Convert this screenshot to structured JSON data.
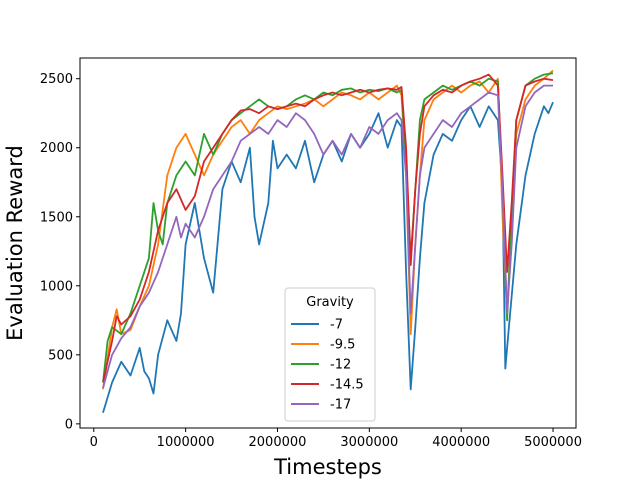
{
  "chart_data": {
    "type": "line",
    "xlabel": "Timesteps",
    "ylabel": "Evaluation Reward",
    "xlim": [
      -150000,
      5250000
    ],
    "ylim": [
      -30,
      2650
    ],
    "xticks": [
      0,
      1000000,
      2000000,
      3000000,
      4000000,
      5000000
    ],
    "xtick_labels": [
      "0",
      "1000000",
      "2000000",
      "3000000",
      "4000000",
      "5000000"
    ],
    "yticks": [
      0,
      500,
      1000,
      1500,
      2000,
      2500
    ],
    "ytick_labels": [
      "0",
      "500",
      "1000",
      "1500",
      "2000",
      "2500"
    ],
    "grid": false,
    "legend": {
      "title": "Gravity",
      "position": "lower-center"
    },
    "series": [
      {
        "name": "-7",
        "color": "#1f77b4",
        "points": [
          [
            100000,
            80
          ],
          [
            200000,
            300
          ],
          [
            300000,
            450
          ],
          [
            400000,
            350
          ],
          [
            500000,
            550
          ],
          [
            550000,
            380
          ],
          [
            600000,
            330
          ],
          [
            650000,
            220
          ],
          [
            700000,
            500
          ],
          [
            800000,
            750
          ],
          [
            900000,
            600
          ],
          [
            950000,
            800
          ],
          [
            1000000,
            1300
          ],
          [
            1100000,
            1600
          ],
          [
            1200000,
            1200
          ],
          [
            1300000,
            950
          ],
          [
            1400000,
            1700
          ],
          [
            1500000,
            1900
          ],
          [
            1600000,
            1750
          ],
          [
            1700000,
            2000
          ],
          [
            1750000,
            1500
          ],
          [
            1800000,
            1300
          ],
          [
            1900000,
            1600
          ],
          [
            1950000,
            2050
          ],
          [
            2000000,
            1850
          ],
          [
            2100000,
            1950
          ],
          [
            2200000,
            1850
          ],
          [
            2300000,
            2050
          ],
          [
            2400000,
            1750
          ],
          [
            2500000,
            1950
          ],
          [
            2600000,
            2050
          ],
          [
            2700000,
            1900
          ],
          [
            2800000,
            2100
          ],
          [
            2900000,
            2000
          ],
          [
            3000000,
            2100
          ],
          [
            3100000,
            2250
          ],
          [
            3200000,
            2000
          ],
          [
            3300000,
            2200
          ],
          [
            3350000,
            2150
          ],
          [
            3400000,
            1100
          ],
          [
            3450000,
            250
          ],
          [
            3500000,
            700
          ],
          [
            3550000,
            1200
          ],
          [
            3600000,
            1600
          ],
          [
            3700000,
            1950
          ],
          [
            3800000,
            2100
          ],
          [
            3900000,
            2050
          ],
          [
            4000000,
            2200
          ],
          [
            4100000,
            2300
          ],
          [
            4200000,
            2150
          ],
          [
            4300000,
            2300
          ],
          [
            4400000,
            2200
          ],
          [
            4450000,
            1700
          ],
          [
            4480000,
            400
          ],
          [
            4520000,
            700
          ],
          [
            4600000,
            1300
          ],
          [
            4700000,
            1800
          ],
          [
            4800000,
            2100
          ],
          [
            4900000,
            2300
          ],
          [
            4950000,
            2250
          ],
          [
            5000000,
            2330
          ]
        ]
      },
      {
        "name": "-9.5",
        "color": "#ff7f0e",
        "points": [
          [
            100000,
            250
          ],
          [
            200000,
            700
          ],
          [
            250000,
            830
          ],
          [
            300000,
            650
          ],
          [
            400000,
            680
          ],
          [
            500000,
            850
          ],
          [
            600000,
            1000
          ],
          [
            700000,
            1300
          ],
          [
            800000,
            1800
          ],
          [
            900000,
            2000
          ],
          [
            1000000,
            2100
          ],
          [
            1100000,
            1950
          ],
          [
            1200000,
            1800
          ],
          [
            1300000,
            1950
          ],
          [
            1400000,
            2050
          ],
          [
            1500000,
            2150
          ],
          [
            1600000,
            2200
          ],
          [
            1700000,
            2100
          ],
          [
            1800000,
            2200
          ],
          [
            1900000,
            2250
          ],
          [
            2000000,
            2300
          ],
          [
            2100000,
            2280
          ],
          [
            2200000,
            2300
          ],
          [
            2300000,
            2320
          ],
          [
            2400000,
            2350
          ],
          [
            2500000,
            2300
          ],
          [
            2600000,
            2350
          ],
          [
            2700000,
            2400
          ],
          [
            2800000,
            2380
          ],
          [
            2900000,
            2350
          ],
          [
            3000000,
            2400
          ],
          [
            3100000,
            2350
          ],
          [
            3200000,
            2400
          ],
          [
            3300000,
            2450
          ],
          [
            3350000,
            2380
          ],
          [
            3400000,
            1800
          ],
          [
            3450000,
            650
          ],
          [
            3500000,
            1300
          ],
          [
            3550000,
            1800
          ],
          [
            3600000,
            2200
          ],
          [
            3700000,
            2350
          ],
          [
            3800000,
            2400
          ],
          [
            3900000,
            2450
          ],
          [
            4000000,
            2400
          ],
          [
            4100000,
            2450
          ],
          [
            4200000,
            2480
          ],
          [
            4300000,
            2400
          ],
          [
            4350000,
            2450
          ],
          [
            4400000,
            2500
          ],
          [
            4450000,
            1500
          ],
          [
            4500000,
            800
          ],
          [
            4550000,
            1500
          ],
          [
            4600000,
            2100
          ],
          [
            4700000,
            2350
          ],
          [
            4800000,
            2450
          ],
          [
            4900000,
            2500
          ],
          [
            5000000,
            2560
          ]
        ]
      },
      {
        "name": "-12",
        "color": "#2ca02c",
        "points": [
          [
            100000,
            300
          ],
          [
            150000,
            600
          ],
          [
            200000,
            700
          ],
          [
            300000,
            650
          ],
          [
            400000,
            800
          ],
          [
            500000,
            1000
          ],
          [
            600000,
            1200
          ],
          [
            650000,
            1600
          ],
          [
            700000,
            1400
          ],
          [
            750000,
            1300
          ],
          [
            800000,
            1600
          ],
          [
            900000,
            1800
          ],
          [
            1000000,
            1900
          ],
          [
            1100000,
            1800
          ],
          [
            1200000,
            2100
          ],
          [
            1300000,
            1950
          ],
          [
            1400000,
            2100
          ],
          [
            1500000,
            2200
          ],
          [
            1600000,
            2250
          ],
          [
            1700000,
            2300
          ],
          [
            1800000,
            2350
          ],
          [
            1900000,
            2300
          ],
          [
            2000000,
            2280
          ],
          [
            2100000,
            2300
          ],
          [
            2200000,
            2350
          ],
          [
            2300000,
            2380
          ],
          [
            2400000,
            2350
          ],
          [
            2500000,
            2400
          ],
          [
            2600000,
            2380
          ],
          [
            2700000,
            2420
          ],
          [
            2800000,
            2430
          ],
          [
            2900000,
            2400
          ],
          [
            3000000,
            2420
          ],
          [
            3100000,
            2410
          ],
          [
            3200000,
            2430
          ],
          [
            3300000,
            2400
          ],
          [
            3350000,
            2420
          ],
          [
            3400000,
            1900
          ],
          [
            3450000,
            1200
          ],
          [
            3500000,
            1700
          ],
          [
            3550000,
            2200
          ],
          [
            3600000,
            2350
          ],
          [
            3700000,
            2400
          ],
          [
            3800000,
            2450
          ],
          [
            3900000,
            2420
          ],
          [
            4000000,
            2450
          ],
          [
            4100000,
            2480
          ],
          [
            4200000,
            2450
          ],
          [
            4300000,
            2500
          ],
          [
            4400000,
            2480
          ],
          [
            4450000,
            1700
          ],
          [
            4500000,
            750
          ],
          [
            4550000,
            1500
          ],
          [
            4600000,
            2200
          ],
          [
            4700000,
            2450
          ],
          [
            4800000,
            2500
          ],
          [
            4900000,
            2530
          ],
          [
            5000000,
            2540
          ]
        ]
      },
      {
        "name": "-14.5",
        "color": "#d62728",
        "points": [
          [
            100000,
            300
          ],
          [
            200000,
            600
          ],
          [
            250000,
            780
          ],
          [
            300000,
            720
          ],
          [
            400000,
            780
          ],
          [
            500000,
            900
          ],
          [
            600000,
            1100
          ],
          [
            700000,
            1400
          ],
          [
            800000,
            1600
          ],
          [
            900000,
            1700
          ],
          [
            1000000,
            1550
          ],
          [
            1100000,
            1650
          ],
          [
            1200000,
            1900
          ],
          [
            1300000,
            2000
          ],
          [
            1400000,
            2100
          ],
          [
            1500000,
            2200
          ],
          [
            1600000,
            2270
          ],
          [
            1700000,
            2280
          ],
          [
            1800000,
            2250
          ],
          [
            1900000,
            2300
          ],
          [
            2000000,
            2280
          ],
          [
            2100000,
            2300
          ],
          [
            2200000,
            2320
          ],
          [
            2300000,
            2300
          ],
          [
            2400000,
            2350
          ],
          [
            2500000,
            2380
          ],
          [
            2600000,
            2400
          ],
          [
            2700000,
            2380
          ],
          [
            2800000,
            2400
          ],
          [
            2900000,
            2420
          ],
          [
            3000000,
            2400
          ],
          [
            3100000,
            2420
          ],
          [
            3200000,
            2430
          ],
          [
            3300000,
            2420
          ],
          [
            3350000,
            2440
          ],
          [
            3400000,
            2000
          ],
          [
            3450000,
            1150
          ],
          [
            3500000,
            1700
          ],
          [
            3550000,
            2100
          ],
          [
            3600000,
            2300
          ],
          [
            3700000,
            2380
          ],
          [
            3800000,
            2420
          ],
          [
            3900000,
            2400
          ],
          [
            4000000,
            2450
          ],
          [
            4100000,
            2480
          ],
          [
            4200000,
            2500
          ],
          [
            4300000,
            2530
          ],
          [
            4400000,
            2450
          ],
          [
            4450000,
            1800
          ],
          [
            4500000,
            1100
          ],
          [
            4550000,
            1600
          ],
          [
            4600000,
            2200
          ],
          [
            4700000,
            2450
          ],
          [
            4800000,
            2480
          ],
          [
            4900000,
            2500
          ],
          [
            5000000,
            2490
          ]
        ]
      },
      {
        "name": "-17",
        "color": "#9467bd",
        "points": [
          [
            100000,
            260
          ],
          [
            200000,
            500
          ],
          [
            300000,
            620
          ],
          [
            400000,
            700
          ],
          [
            500000,
            850
          ],
          [
            600000,
            950
          ],
          [
            700000,
            1100
          ],
          [
            800000,
            1300
          ],
          [
            900000,
            1500
          ],
          [
            950000,
            1350
          ],
          [
            1000000,
            1450
          ],
          [
            1100000,
            1350
          ],
          [
            1200000,
            1500
          ],
          [
            1300000,
            1700
          ],
          [
            1400000,
            1800
          ],
          [
            1500000,
            1900
          ],
          [
            1600000,
            2050
          ],
          [
            1700000,
            2100
          ],
          [
            1800000,
            2150
          ],
          [
            1900000,
            2100
          ],
          [
            2000000,
            2200
          ],
          [
            2100000,
            2150
          ],
          [
            2200000,
            2250
          ],
          [
            2300000,
            2200
          ],
          [
            2400000,
            2100
          ],
          [
            2500000,
            1950
          ],
          [
            2600000,
            2050
          ],
          [
            2700000,
            1950
          ],
          [
            2800000,
            2100
          ],
          [
            2900000,
            2000
          ],
          [
            3000000,
            2150
          ],
          [
            3100000,
            2100
          ],
          [
            3200000,
            2200
          ],
          [
            3300000,
            2250
          ],
          [
            3350000,
            2200
          ],
          [
            3400000,
            1800
          ],
          [
            3450000,
            800
          ],
          [
            3500000,
            1300
          ],
          [
            3550000,
            1800
          ],
          [
            3600000,
            2000
          ],
          [
            3700000,
            2100
          ],
          [
            3800000,
            2200
          ],
          [
            3900000,
            2150
          ],
          [
            4000000,
            2250
          ],
          [
            4100000,
            2300
          ],
          [
            4200000,
            2350
          ],
          [
            4300000,
            2400
          ],
          [
            4400000,
            2380
          ],
          [
            4450000,
            1700
          ],
          [
            4500000,
            800
          ],
          [
            4550000,
            1300
          ],
          [
            4600000,
            2000
          ],
          [
            4700000,
            2300
          ],
          [
            4800000,
            2400
          ],
          [
            4900000,
            2450
          ],
          [
            5000000,
            2450
          ]
        ]
      }
    ]
  }
}
